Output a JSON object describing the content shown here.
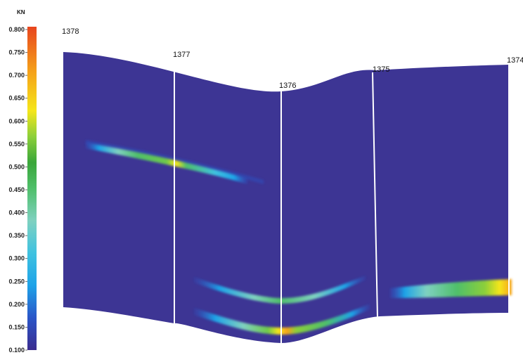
{
  "colorbar": {
    "unit": "KN",
    "min": 0.1,
    "max": 0.8,
    "ticks": [
      "0.800",
      "0.750",
      "0.700",
      "0.650",
      "0.600",
      "0.550",
      "0.500",
      "0.450",
      "0.400",
      "0.350",
      "0.300",
      "0.250",
      "0.200",
      "0.150",
      "0.100"
    ],
    "colormap": [
      "#3b2c8f",
      "#2a55c8",
      "#1ea3e8",
      "#3fc2e0",
      "#7fd1c0",
      "#4fbf6a",
      "#3aa63a",
      "#8ccf3a",
      "#f5e61a",
      "#f5a21a",
      "#e8451e"
    ]
  },
  "section": {
    "background_color": "#3d3594",
    "wells": [
      {
        "name": "1378"
      },
      {
        "name": "1377"
      },
      {
        "name": "1376"
      },
      {
        "name": "1375"
      },
      {
        "name": "1374"
      }
    ]
  }
}
